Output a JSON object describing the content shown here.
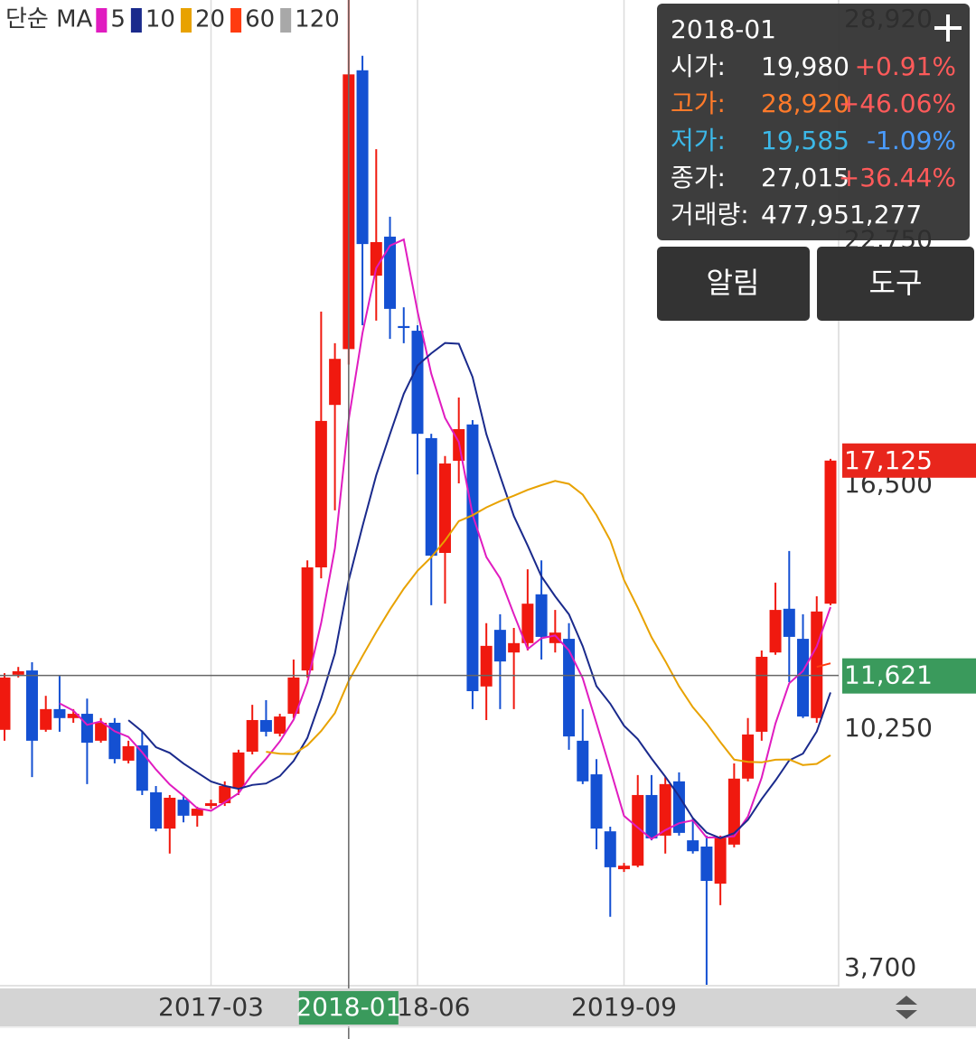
{
  "chart_data": {
    "type": "candlestick",
    "legend_title": "단순 MA",
    "x": [
      "2015-12",
      "2016-01",
      "2016-02",
      "2016-03",
      "2016-04",
      "2016-05",
      "2016-06",
      "2016-07",
      "2016-08",
      "2016-09",
      "2016-10",
      "2016-11",
      "2016-12",
      "2017-01",
      "2017-02",
      "2017-03",
      "2017-04",
      "2017-05",
      "2017-06",
      "2017-07",
      "2017-08",
      "2017-09",
      "2017-10",
      "2017-11",
      "2017-12",
      "2018-01",
      "2018-02",
      "2018-03",
      "2018-04",
      "2018-05",
      "2018-06",
      "2018-07",
      "2018-08",
      "2018-09",
      "2018-10",
      "2018-11",
      "2018-12",
      "2019-01",
      "2019-02",
      "2019-03",
      "2019-04",
      "2019-05",
      "2019-06",
      "2019-07",
      "2019-08",
      "2019-09",
      "2019-10",
      "2019-11",
      "2019-12",
      "2020-01",
      "2020-02",
      "2020-03",
      "2020-04",
      "2020-05",
      "2020-06",
      "2020-07",
      "2020-08",
      "2020-09",
      "2020-10",
      "2020-11",
      "2020-12"
    ],
    "open": [
      10230,
      11640,
      11750,
      10230,
      10760,
      10530,
      10640,
      9950,
      10410,
      9440,
      9830,
      8630,
      7700,
      8440,
      8030,
      8280,
      8350,
      8740,
      9670,
      10480,
      10130,
      10640,
      11750,
      14390,
      18550,
      19980,
      27120,
      21860,
      22860,
      20570,
      20450,
      17700,
      14760,
      17120,
      18050,
      11340,
      12790,
      12210,
      12450,
      13700,
      12450,
      12560,
      9950,
      9090,
      7630,
      6660,
      6750,
      8560,
      7520,
      8910,
      7400,
      7240,
      6290,
      7290,
      8980,
      10180,
      12210,
      13330,
      12560,
      10530,
      13460
    ],
    "high": [
      11680,
      11840,
      11960,
      11100,
      11610,
      10760,
      11030,
      10530,
      10530,
      9950,
      10180,
      8790,
      8560,
      8560,
      8260,
      8440,
      8910,
      9720,
      10870,
      10990,
      10640,
      12030,
      14570,
      20940,
      20130,
      28920,
      27490,
      25100,
      23370,
      21050,
      20590,
      17810,
      17240,
      18740,
      18160,
      12960,
      13190,
      12840,
      14340,
      14570,
      13300,
      12960,
      10760,
      9480,
      7750,
      6820,
      9070,
      9070,
      9020,
      9140,
      7980,
      7520,
      7520,
      9370,
      10530,
      12260,
      14000,
      14810,
      13190,
      13650,
      17170
    ],
    "low": [
      9950,
      11570,
      9020,
      10180,
      10180,
      10410,
      8840,
      9900,
      9370,
      9370,
      8560,
      7630,
      7060,
      7860,
      7750,
      8210,
      8280,
      8560,
      9600,
      10060,
      10060,
      10530,
      11570,
      14110,
      15850,
      19585,
      20590,
      20710,
      20240,
      20130,
      16770,
      13420,
      13460,
      16540,
      10760,
      10480,
      10760,
      10760,
      12260,
      12030,
      12210,
      9720,
      8840,
      7170,
      5440,
      6590,
      6710,
      7400,
      7060,
      7520,
      7060,
      3700,
      5740,
      7220,
      8910,
      9950,
      12150,
      11450,
      10530,
      10410,
      13420
    ],
    "close": [
      11570,
      11730,
      9950,
      10760,
      10530,
      10640,
      9900,
      10410,
      9480,
      9810,
      8670,
      7700,
      8490,
      8030,
      8210,
      8350,
      8790,
      9650,
      10480,
      10180,
      10570,
      11570,
      14390,
      18140,
      19730,
      27015,
      22670,
      22720,
      21010,
      20520,
      17810,
      14690,
      17050,
      17930,
      11220,
      12380,
      11980,
      12450,
      13460,
      12610,
      12720,
      10060,
      8910,
      7700,
      6710,
      6750,
      8560,
      7450,
      8840,
      7590,
      7120,
      6360,
      7470,
      8980,
      10110,
      12100,
      13300,
      12610,
      10570,
      13260,
      17125
    ],
    "up_color": "#f0190f",
    "down_color": "#1450d2",
    "series": [
      {
        "name": "5",
        "color": "#e01cc0",
        "values": [
          null,
          null,
          null,
          null,
          10908,
          10722,
          10356,
          10448,
          10192,
          10048,
          9654,
          9214,
          8830,
          8540,
          8220,
          8156,
          8374,
          8606,
          9096,
          9490,
          9934,
          10490,
          11438,
          12970,
          14880,
          18169,
          20389,
          22055,
          22629,
          22787,
          20946,
          19350,
          18216,
          17600,
          15740,
          14654,
          14112,
          13192,
          12298,
          12576,
          12644,
          12260,
          11552,
          10400,
          9220,
          8026,
          7726,
          7434,
          7662,
          7838,
          7912,
          7472,
          7476,
          7504,
          8008,
          9004,
          10392,
          11420,
          11736,
          12366,
          13371
        ]
      },
      {
        "name": "10",
        "color": "#1a2a8c",
        "values": [
          null,
          null,
          null,
          null,
          null,
          null,
          null,
          null,
          null,
          10478,
          10188,
          9785,
          9639,
          9366,
          9134,
          8905,
          8794,
          8718,
          8818,
          8855,
          9045,
          9432,
          10022,
          11033,
          12185,
          14052,
          15440,
          16747,
          17800,
          18834,
          19558,
          19870,
          20136,
          20115,
          19264,
          17800,
          16731,
          15704,
          14949,
          14158,
          13649,
          13186,
          12372,
          11349,
          10898,
          10335,
          9993,
          9493,
          9031,
          8529,
          7969,
          7599,
          7455,
          7583,
          7923,
          8458,
          8932,
          9448,
          9620,
          10187,
          11188
        ]
      },
      {
        "name": "20",
        "color": "#e8a200",
        "values": [
          null,
          null,
          null,
          null,
          null,
          null,
          null,
          null,
          null,
          null,
          null,
          null,
          null,
          null,
          null,
          null,
          null,
          null,
          null,
          9667,
          9617,
          9609,
          9831,
          10200,
          10660,
          11478,
          12117,
          12732,
          13309,
          13844,
          14301,
          14651,
          15079,
          15574,
          15724,
          15926,
          16085,
          16225,
          16374,
          16496,
          16603,
          16528,
          16254,
          15732,
          15081,
          14068,
          13362,
          12599,
          11990,
          11344,
          10809,
          10393,
          9914,
          9466,
          9411,
          9397,
          9463,
          9471,
          9326,
          9358,
          9578
        ]
      },
      {
        "name": "60",
        "color": "#ff3b10",
        "values": [
          null,
          null,
          null,
          null,
          null,
          null,
          null,
          null,
          null,
          null,
          null,
          null,
          null,
          null,
          null,
          null,
          null,
          null,
          null,
          null,
          null,
          null,
          null,
          null,
          null,
          null,
          null,
          null,
          null,
          null,
          null,
          null,
          null,
          null,
          null,
          null,
          null,
          null,
          null,
          null,
          null,
          null,
          null,
          null,
          null,
          null,
          null,
          null,
          null,
          null,
          null,
          null,
          null,
          null,
          null,
          null,
          null,
          null,
          null,
          11840,
          11933
        ]
      },
      {
        "name": "120",
        "color": "#a8a8a8",
        "values": [
          null,
          null,
          null,
          null,
          null,
          null,
          null,
          null,
          null,
          null,
          null,
          null,
          null,
          null,
          null,
          null,
          null,
          null,
          null,
          null,
          null,
          null,
          null,
          null,
          null,
          null,
          null,
          null,
          null,
          null,
          null,
          null,
          null,
          null,
          null,
          null,
          null,
          null,
          null,
          null,
          null,
          null,
          null,
          null,
          null,
          null,
          null,
          null,
          null,
          null,
          null,
          null,
          null,
          null,
          null,
          null,
          null,
          null,
          null,
          null,
          null
        ]
      }
    ],
    "ylim": [
      3700,
      28920
    ],
    "yticks": [
      {
        "value": 3700,
        "label": "3,700"
      },
      {
        "value": 10250,
        "label": "10,250"
      },
      {
        "value": 16500,
        "label": "16,500"
      },
      {
        "value": 22750,
        "label": "22,750"
      },
      {
        "value": 28920,
        "label": "28,920"
      }
    ],
    "xticks": [
      "2017-03",
      "2018-06",
      "2019-09"
    ],
    "grid": true,
    "crosshair": {
      "x": "2018-01",
      "y": {
        "value": 11621,
        "label": "11,621"
      }
    },
    "last_price": {
      "value": 17125,
      "label": "17,125"
    }
  },
  "info_panel": {
    "date": "2018-01",
    "rows": [
      {
        "label": "시가:",
        "value": "19,980",
        "change": "+0.91%"
      },
      {
        "label": "고가:",
        "value": "28,920",
        "change": "+46.06%"
      },
      {
        "label": "저가:",
        "value": "19,585",
        "change": "-1.09%"
      },
      {
        "label": "종가:",
        "value": "27,015",
        "change": "+36.44%"
      },
      {
        "label": "거래량:",
        "value": "477,951,277"
      }
    ]
  },
  "buttons": [
    "알림",
    "도구"
  ]
}
